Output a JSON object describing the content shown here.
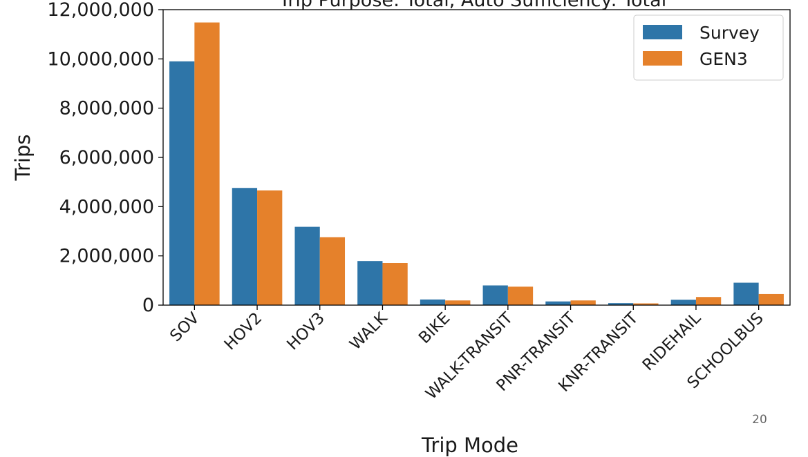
{
  "chart_data": {
    "type": "bar",
    "title": "Trip Purpose: Total, Auto Sufficiency: Total",
    "xlabel": "Trip Mode",
    "ylabel": "Trips",
    "ylim": [
      0,
      12000000
    ],
    "yticks": [
      "0",
      "2,000,000",
      "4,000,000",
      "6,000,000",
      "8,000,000",
      "10,000,000",
      "12,000,000"
    ],
    "categories": [
      "SOV",
      "HOV2",
      "HOV3",
      "WALK",
      "BIKE",
      "WALK-TRANSIT",
      "PNR-TRANSIT",
      "KNR-TRANSIT",
      "RIDEHAIL",
      "SCHOOLBUS"
    ],
    "series": [
      {
        "name": "Survey",
        "color": "#2e75a8",
        "values": [
          9900000,
          4760000,
          3180000,
          1790000,
          230000,
          800000,
          150000,
          80000,
          220000,
          910000
        ]
      },
      {
        "name": "GEN3",
        "color": "#e5812b",
        "values": [
          11480000,
          4660000,
          2760000,
          1710000,
          190000,
          750000,
          190000,
          70000,
          330000,
          450000
        ]
      }
    ],
    "legend_position": "top-right",
    "grid": false
  },
  "page_number": "20"
}
